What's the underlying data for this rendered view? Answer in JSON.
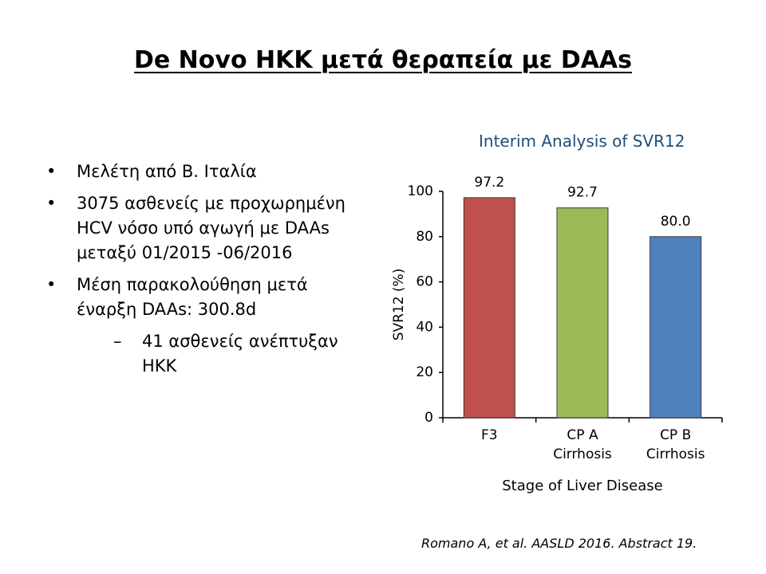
{
  "slide": {
    "title": "De Novo HKK μετά θεραπεία με DAAs",
    "bullets": [
      {
        "marker": "•",
        "text": "Μελέτη από Β. Ιταλία"
      },
      {
        "marker": "•",
        "text": "3075 ασθενείς με προχωρημένη HCV νόσο υπό αγωγή με DAAs μεταξύ 01/2015 -06/2016"
      },
      {
        "marker": "•",
        "text": "Μέση παρακολούθηση μετά έναρξη DAAs: 300.8d"
      }
    ],
    "sub_bullet": {
      "marker": "–",
      "text": "41 ασθενείς ανέπτυξαν HKK"
    },
    "citation": "Romano A, et al. AASLD 2016. Abstract 19."
  },
  "chart_data": {
    "type": "bar",
    "title": "Interim Analysis of SVR12",
    "categories": [
      [
        "F3"
      ],
      [
        "CP A",
        "Cirrhosis"
      ],
      [
        "CP B",
        "Cirrhosis"
      ]
    ],
    "values": [
      97.2,
      92.7,
      80.0
    ],
    "value_labels": [
      "97.2",
      "92.7",
      "80.0"
    ],
    "colors": [
      "#c0504d",
      "#9bbb59",
      "#4f81bd"
    ],
    "xlabel": "Stage of Liver Disease",
    "ylabel": "SVR12 (%)",
    "ylim": [
      0,
      100
    ],
    "yticks": [
      0,
      20,
      40,
      60,
      80,
      100
    ],
    "grid": false
  }
}
